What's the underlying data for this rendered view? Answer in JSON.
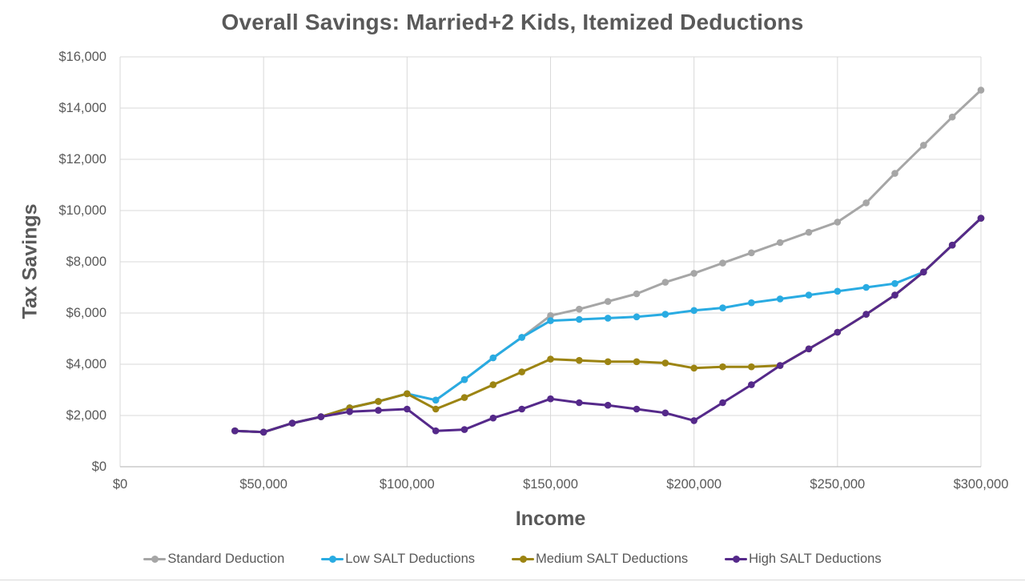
{
  "colors": {
    "text": "#595959",
    "gridline": "#d9d9d9",
    "axis_line": "#bfbfbf",
    "background": "#ffffff",
    "bottom_border": "#d9d9d9"
  },
  "chart_data": {
    "type": "line",
    "title": "Overall Savings: Married+2 Kids, Itemized Deductions",
    "xlabel": "Income",
    "ylabel": "Tax Savings",
    "legend_position": "bottom",
    "grid": true,
    "marker": "circle",
    "xlim": [
      0,
      300000
    ],
    "ylim": [
      0,
      16000
    ],
    "x_ticks": [
      {
        "value": 0,
        "label": "$0"
      },
      {
        "value": 50000,
        "label": "$50,000"
      },
      {
        "value": 100000,
        "label": "$100,000"
      },
      {
        "value": 150000,
        "label": "$150,000"
      },
      {
        "value": 200000,
        "label": "$200,000"
      },
      {
        "value": 250000,
        "label": "$250,000"
      },
      {
        "value": 300000,
        "label": "$300,000"
      }
    ],
    "y_ticks": [
      {
        "value": 0,
        "label": "$0"
      },
      {
        "value": 2000,
        "label": "$2,000"
      },
      {
        "value": 4000,
        "label": "$4,000"
      },
      {
        "value": 6000,
        "label": "$6,000"
      },
      {
        "value": 8000,
        "label": "$8,000"
      },
      {
        "value": 10000,
        "label": "$10,000"
      },
      {
        "value": 12000,
        "label": "$12,000"
      },
      {
        "value": 14000,
        "label": "$14,000"
      },
      {
        "value": 16000,
        "label": "$16,000"
      }
    ],
    "x": [
      40000,
      50000,
      60000,
      70000,
      80000,
      90000,
      100000,
      110000,
      120000,
      130000,
      140000,
      150000,
      160000,
      170000,
      180000,
      190000,
      200000,
      210000,
      220000,
      230000,
      240000,
      250000,
      260000,
      270000,
      280000,
      290000,
      300000
    ],
    "series": [
      {
        "name": "Standard Deduction",
        "color": "#a6a6a6",
        "values": [
          1400,
          1350,
          1700,
          1950,
          2300,
          2550,
          2850,
          2600,
          3400,
          4250,
          5050,
          5900,
          6150,
          6450,
          6750,
          7200,
          7550,
          7950,
          8350,
          8750,
          9150,
          9550,
          10300,
          11450,
          12550,
          13650,
          14700
        ]
      },
      {
        "name": "Low SALT Deductions",
        "color": "#29abe2",
        "values": [
          1400,
          1350,
          1700,
          1950,
          2300,
          2550,
          2850,
          2600,
          3400,
          4250,
          5050,
          5700,
          5750,
          5800,
          5850,
          5950,
          6100,
          6200,
          6400,
          6550,
          6700,
          6850,
          7000,
          7150,
          7600,
          8650,
          9700
        ]
      },
      {
        "name": "Medium SALT Deductions",
        "color": "#9c8412",
        "values": [
          1400,
          1350,
          1700,
          1950,
          2300,
          2550,
          2850,
          2250,
          2700,
          3200,
          3700,
          4200,
          4150,
          4100,
          4100,
          4050,
          3850,
          3900,
          3900,
          3950,
          4600,
          5250,
          5950,
          6700,
          7600,
          8650,
          9700
        ]
      },
      {
        "name": "High SALT Deductions",
        "color": "#55298a",
        "values": [
          1400,
          1350,
          1700,
          1950,
          2150,
          2200,
          2250,
          1400,
          1450,
          1900,
          2250,
          2650,
          2500,
          2400,
          2250,
          2100,
          1800,
          2500,
          3200,
          3950,
          4600,
          5250,
          5950,
          6700,
          7600,
          8650,
          9700
        ]
      }
    ]
  }
}
